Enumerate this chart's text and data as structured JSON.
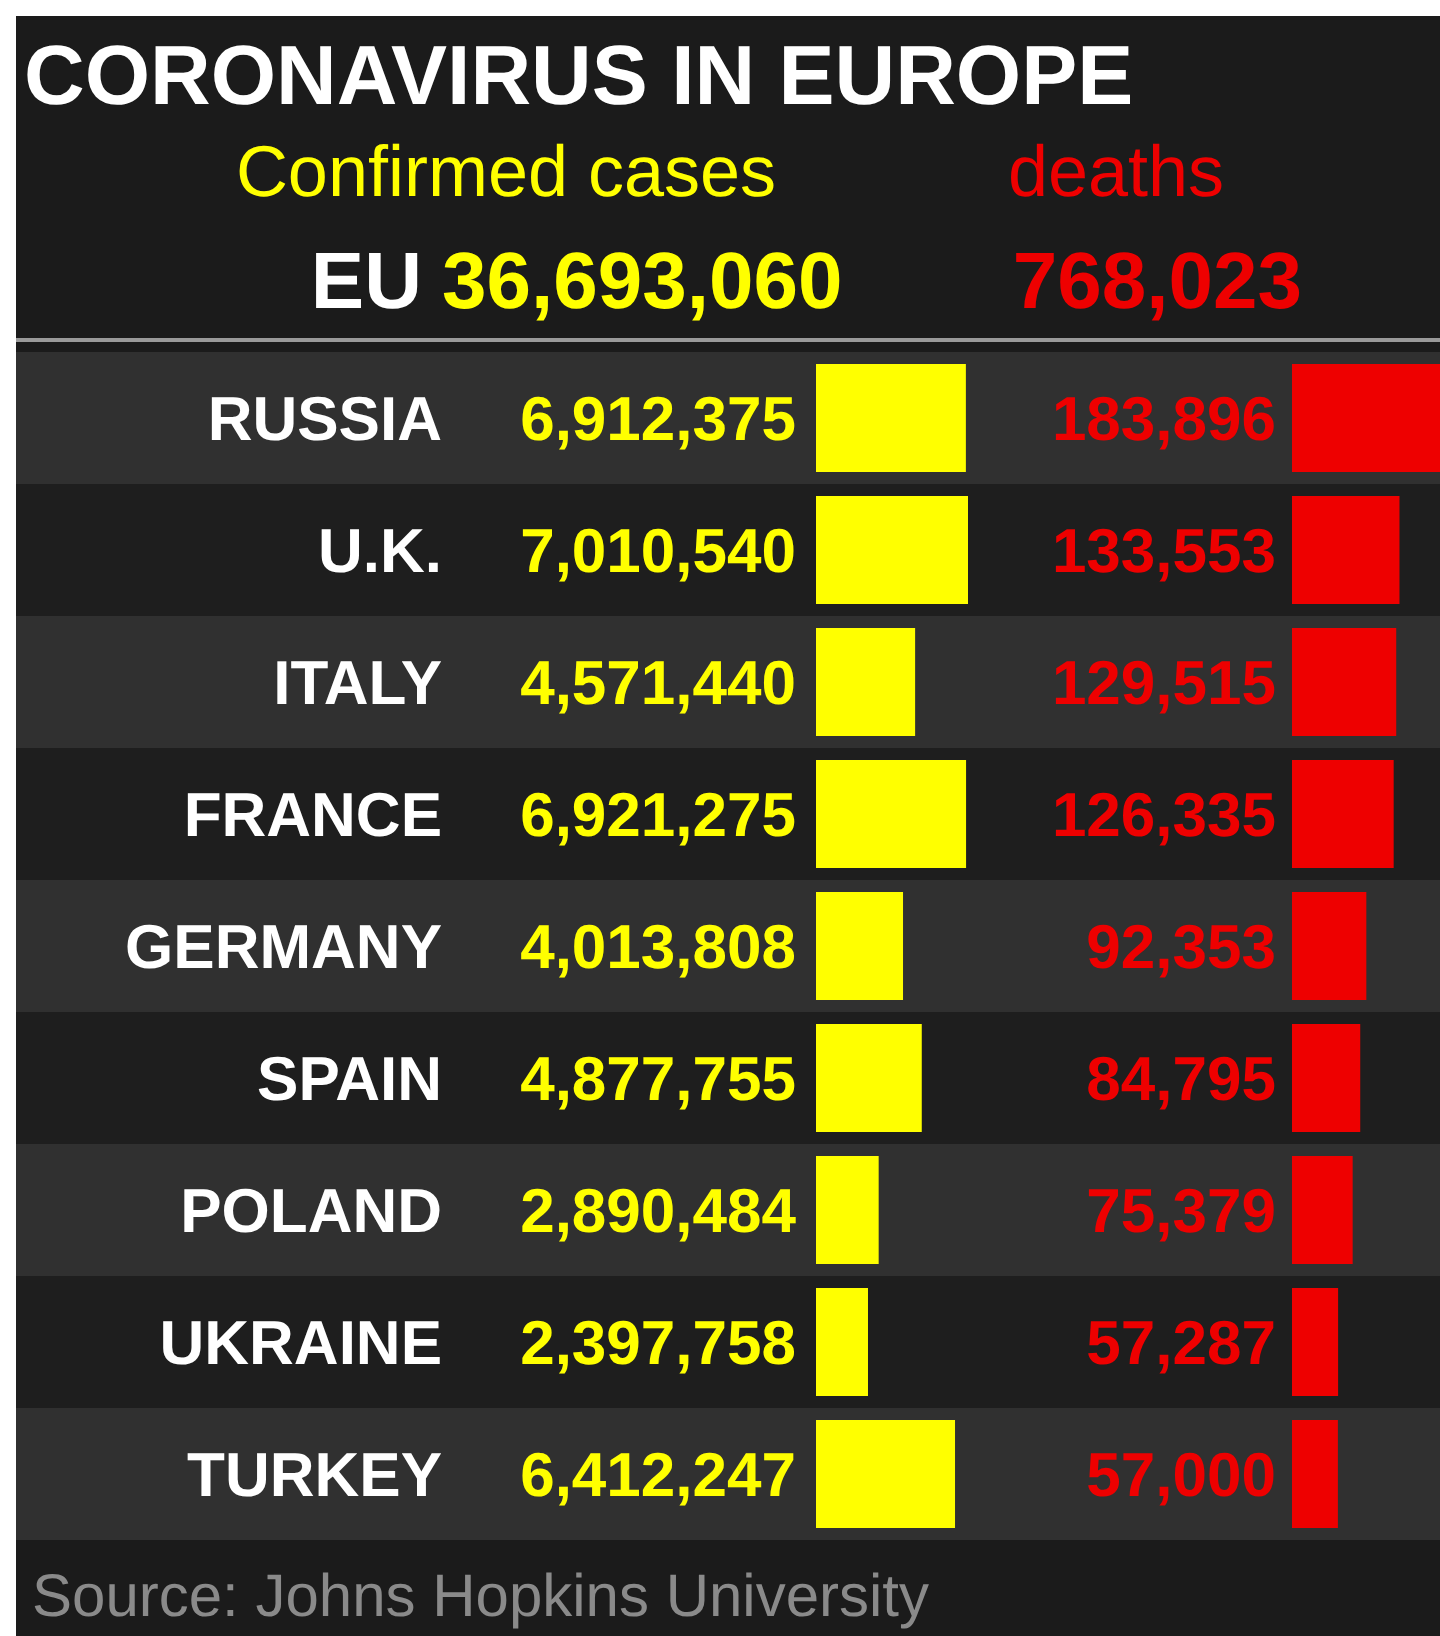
{
  "chart_data": [
    {
      "type": "bar",
      "orientation": "horizontal",
      "title": "CORONAVIRUS IN EUROPE",
      "subtitle": "Confirmed cases",
      "annotations": [
        "EU",
        "36,693,060",
        "Source: Johns Hopkins University"
      ],
      "categories": [
        "RUSSIA",
        "U.K.",
        "ITALY",
        "FRANCE",
        "GERMANY",
        "SPAIN",
        "POLAND",
        "UKRAINE",
        "TURKEY"
      ],
      "values": [
        6912375,
        7010540,
        4571440,
        6921275,
        4013808,
        4877755,
        2890484,
        2397758,
        6412247
      ],
      "color": "#ffff00",
      "value_labels": [
        "6,912,375",
        "7,010,540",
        "4,571,440",
        "6,921,275",
        "4,013,808",
        "4,877,755",
        "2,890,484",
        "2,397,758",
        "6,412,247"
      ]
    },
    {
      "type": "bar",
      "orientation": "horizontal",
      "subtitle": "deaths",
      "annotations": [
        "768,023"
      ],
      "categories": [
        null,
        null,
        null,
        null,
        null,
        null,
        null,
        null,
        null
      ],
      "values": [
        183896,
        133553,
        129515,
        126335,
        92353,
        84795,
        75379,
        57287,
        57000
      ],
      "color": "#ee0000",
      "value_labels": [
        "183,896",
        "133,553",
        "129,515",
        "126,335",
        "92,353",
        "84,795",
        "75,379",
        "57,287",
        "57,000"
      ]
    }
  ]
}
